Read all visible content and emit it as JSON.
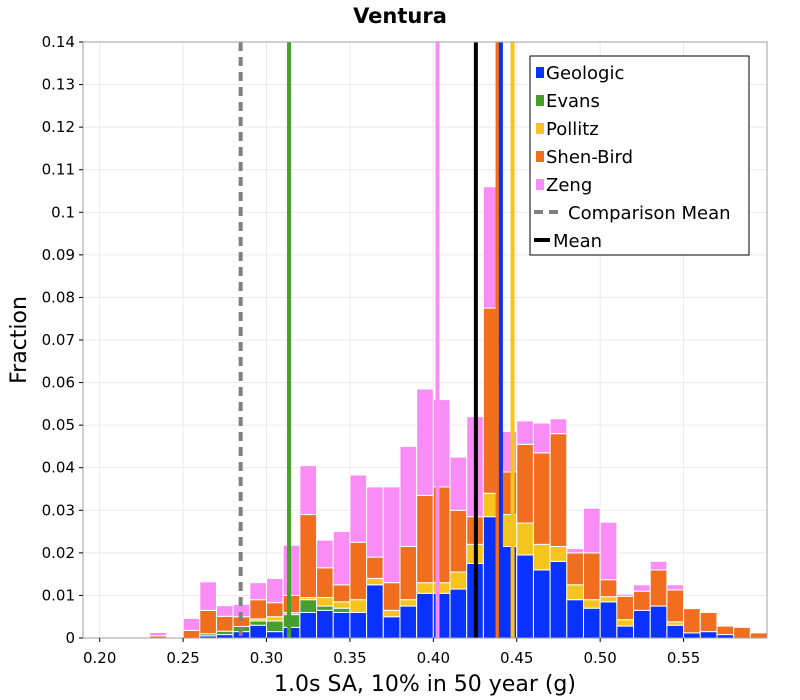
{
  "chart_data": {
    "type": "bar",
    "stacked": true,
    "title": "Ventura",
    "xlabel": "1.0s SA, 10% in 50 year (g)",
    "ylabel": "Fraction",
    "xlim": [
      0.19,
      0.6
    ],
    "ylim": [
      0,
      0.14
    ],
    "bin_width": 0.01,
    "grid": true,
    "legend_position": "top-right",
    "x_ticks": [
      "0.20",
      "0.25",
      "0.30",
      "0.35",
      "0.40",
      "0.45",
      "0.50",
      "0.55"
    ],
    "y_ticks": [
      "0",
      "0.01",
      "0.02",
      "0.03",
      "0.04",
      "0.05",
      "0.06",
      "0.07",
      "0.08",
      "0.09",
      "0.1",
      "0.11",
      "0.12",
      "0.13",
      "0.14"
    ],
    "bin_starts": [
      0.22,
      0.23,
      0.24,
      0.25,
      0.26,
      0.27,
      0.28,
      0.29,
      0.3,
      0.31,
      0.32,
      0.33,
      0.34,
      0.35,
      0.36,
      0.37,
      0.38,
      0.39,
      0.4,
      0.41,
      0.42,
      0.43,
      0.44,
      0.45,
      0.46,
      0.47,
      0.48,
      0.49,
      0.5,
      0.51,
      0.52,
      0.53,
      0.54,
      0.55,
      0.56,
      0.57,
      0.58,
      0.59
    ],
    "series": [
      {
        "name": "Geologic",
        "color": "#0a32ff",
        "values": [
          0,
          0,
          0,
          0,
          0.0005,
          0.0008,
          0.0015,
          0.003,
          0.0015,
          0.0025,
          0.006,
          0.0065,
          0.006,
          0.006,
          0.0125,
          0.005,
          0.0075,
          0.0105,
          0.0105,
          0.0115,
          0.0175,
          0.0285,
          0.0215,
          0.0195,
          0.016,
          0.018,
          0.009,
          0.007,
          0.0085,
          0.0028,
          0.0065,
          0.0075,
          0.003,
          0.0012,
          0.0015,
          0.0008,
          0,
          0
        ]
      },
      {
        "name": "Evans",
        "color": "#46a02d",
        "values": [
          0,
          0,
          0,
          0,
          0.0005,
          0.0008,
          0.0012,
          0.001,
          0.0025,
          0.003,
          0.003,
          0.001,
          0.001,
          0,
          0,
          0,
          0,
          0,
          0,
          0,
          0,
          0,
          0,
          0,
          0,
          0,
          0,
          0,
          0,
          0,
          0,
          0,
          0,
          0,
          0,
          0,
          0,
          0
        ]
      },
      {
        "name": "Pollitz",
        "color": "#f5c51e",
        "values": [
          0,
          0,
          0,
          0,
          0,
          0,
          0,
          0.0005,
          0.001,
          0.0005,
          0.0005,
          0.002,
          0.0015,
          0.003,
          0.0015,
          0.0015,
          0.0015,
          0.0025,
          0.0025,
          0.004,
          0.0045,
          0.0055,
          0.0075,
          0.0075,
          0.006,
          0.0035,
          0.0035,
          0.002,
          0.0012,
          0.0015,
          0,
          0,
          0.0008,
          0,
          0,
          0,
          0,
          0
        ]
      },
      {
        "name": "Shen-Bird",
        "color": "#f06e1e",
        "values": [
          0,
          0.0005,
          0,
          0.0018,
          0.0055,
          0.0035,
          0.0023,
          0.0045,
          0.0033,
          0.004,
          0.0195,
          0.007,
          0.004,
          0.0135,
          0.005,
          0.0065,
          0.0125,
          0.0205,
          0.0225,
          0.0145,
          0.0065,
          0.0435,
          0.01,
          0.0185,
          0.0215,
          0.0265,
          0.0075,
          0.011,
          0.004,
          0.0055,
          0.0045,
          0.0085,
          0.0075,
          0.0057,
          0.0045,
          0.002,
          0.0025,
          0.0012
        ]
      },
      {
        "name": "Zeng",
        "color": "#fa8cf5",
        "values": [
          0.0002,
          0.0008,
          0,
          0.0028,
          0.0067,
          0.0025,
          0.0029,
          0.004,
          0.0057,
          0.0118,
          0.0115,
          0.0065,
          0.0125,
          0.0158,
          0.0165,
          0.0225,
          0.0235,
          0.025,
          0.0205,
          0.0125,
          0.0235,
          0.0285,
          0.0095,
          0.0055,
          0.007,
          0.0035,
          0.001,
          0.0105,
          0.0135,
          0.0005,
          0.0015,
          0.002,
          0.0012,
          0,
          0,
          0,
          0,
          0
        ]
      }
    ],
    "vlines": [
      {
        "name": "Zeng mean",
        "x": 0.4025,
        "color": "#fa8cf5",
        "dashed": false
      },
      {
        "name": "Evans mean",
        "x": 0.3135,
        "color": "#46a02d",
        "dashed": false
      },
      {
        "name": "Shen-Bird mean",
        "x": 0.4385,
        "color": "#f06e1e",
        "dashed": false
      },
      {
        "name": "Geologic mean",
        "x": 0.4405,
        "color": "#0a32ff",
        "dashed": false
      },
      {
        "name": "Pollitz mean",
        "x": 0.4475,
        "color": "#f5c51e",
        "dashed": false
      },
      {
        "name": "Mean",
        "x": 0.4255,
        "color": "#000000",
        "dashed": false
      },
      {
        "name": "Comparison Mean",
        "x": 0.2845,
        "color": "#808080",
        "dashed": true
      }
    ],
    "legend": [
      {
        "label": "Geologic",
        "kind": "box",
        "color": "#0a32ff"
      },
      {
        "label": "Evans",
        "kind": "box",
        "color": "#46a02d"
      },
      {
        "label": "Pollitz",
        "kind": "box",
        "color": "#f5c51e"
      },
      {
        "label": "Shen-Bird",
        "kind": "box",
        "color": "#f06e1e"
      },
      {
        "label": "Zeng",
        "kind": "box",
        "color": "#fa8cf5"
      },
      {
        "label": "Comparison Mean",
        "kind": "dashed",
        "color": "#808080"
      },
      {
        "label": "Mean",
        "kind": "line",
        "color": "#000000"
      }
    ]
  }
}
